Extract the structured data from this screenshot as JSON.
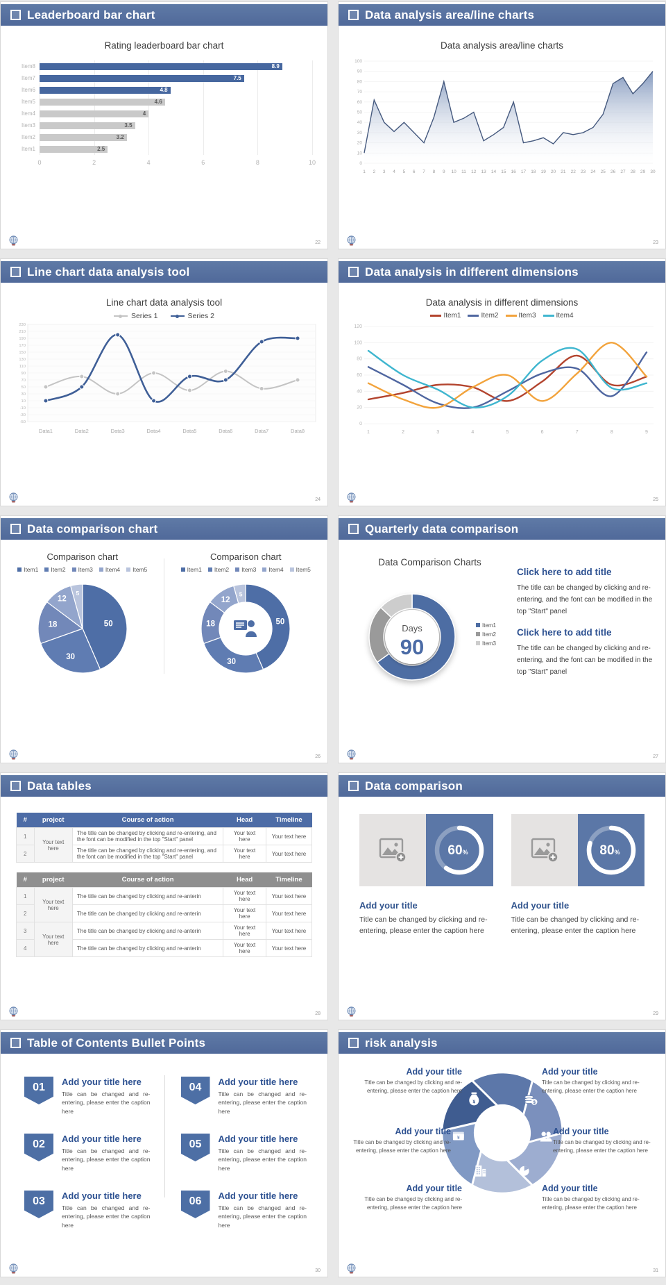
{
  "page": {
    "background": "#e8e8e8",
    "accent": "#50699a"
  },
  "slides": {
    "s1": {
      "header": "Leaderboard bar chart",
      "page_number": "22"
    },
    "s2": {
      "header": "Data analysis area/line charts",
      "page_number": "23"
    },
    "s3": {
      "header": "Line chart data analysis tool",
      "page_number": "24"
    },
    "s4": {
      "header": "Data analysis in different dimensions",
      "page_number": "25"
    },
    "s5": {
      "header": "Data comparison chart",
      "page_number": "26"
    },
    "s6": {
      "header": "Quarterly data comparison",
      "page_number": "27",
      "chart_title": "Data Comparison Charts",
      "blocks": [
        {
          "heading": "Click here to add title",
          "body": "The title can be changed by clicking and re-entering, and the font can be modified in the top \"Start\" panel"
        },
        {
          "heading": "Click here to add title",
          "body": "The title can be changed by clicking and re-entering, and the font can be modified in the top \"Start\" panel"
        }
      ]
    },
    "s7": {
      "header": "Data tables",
      "page_number": "28",
      "table1": {
        "style": "blue",
        "headers": [
          "#",
          "project",
          "Course of action",
          "Head",
          "Timeline"
        ],
        "project_merged": [
          "Your text here"
        ],
        "rows": [
          {
            "num": "1",
            "action": "The title can be changed by clicking and re-entering, and the font can be modified in the top \"Start\" panel",
            "head": "Your text here",
            "timeline": "Your text here"
          },
          {
            "num": "2",
            "action": "The title can be changed by clicking and re-entering, and the font can be modified in the top \"Start\" panel",
            "head": "Your text here",
            "timeline": "Your text here"
          }
        ]
      },
      "table2": {
        "style": "gray",
        "headers": [
          "#",
          "project",
          "Course of action",
          "Head",
          "Timeline"
        ],
        "project_merged": [
          "Your text here",
          "Your text here"
        ],
        "rows": [
          {
            "num": "1",
            "action": "The title can be changed by clicking and re-anterin",
            "head": "Your text here",
            "timeline": "Your text here"
          },
          {
            "num": "2",
            "action": "The title can be changed by clicking and re-anterin",
            "head": "Your text here",
            "timeline": "Your text here"
          },
          {
            "num": "3",
            "action": "The title can be changed by clicking and re-anterin",
            "head": "Your text here",
            "timeline": "Your text here"
          },
          {
            "num": "4",
            "action": "The title can be changed by clicking and re-anterin",
            "head": "Your text here",
            "timeline": "Your text here"
          }
        ]
      }
    },
    "s8": {
      "header": "Data comparison",
      "page_number": "29",
      "cards": [
        {
          "percent": 60,
          "percent_label": "60",
          "percent_suffix": "%",
          "title": "Add your title",
          "caption": "Title can be changed by clicking and re-entering, please enter the caption here"
        },
        {
          "percent": 80,
          "percent_label": "80",
          "percent_suffix": "%",
          "title": "Add your title",
          "caption": "Title can be changed by clicking and re-entering, please enter the caption here"
        }
      ]
    },
    "s9": {
      "header": "Table of Contents Bullet Points",
      "page_number": "30",
      "items": [
        {
          "number": "01",
          "title": "Add your title here",
          "caption": "Title can be changed and re-entering, please enter the caption here"
        },
        {
          "number": "02",
          "title": "Add your title here",
          "caption": "Title can be changed and re-entering, please enter the caption here"
        },
        {
          "number": "03",
          "title": "Add your title here",
          "caption": "Title can be changed and re-entering, please enter the caption here"
        },
        {
          "number": "04",
          "title": "Add your title here",
          "caption": "Title can be changed and re-entering, please enter the caption here"
        },
        {
          "number": "05",
          "title": "Add your title here",
          "caption": "Title can be changed and re-entering, please enter the caption here"
        },
        {
          "number": "06",
          "title": "Add your title here",
          "caption": "Title can be changed and re-entering, please enter the caption here"
        }
      ]
    },
    "s10": {
      "header": "risk analysis",
      "page_number": "31",
      "items": [
        {
          "icon": "moneybag-icon",
          "title": "Add your title",
          "caption": "Title can be changed by clicking and re-entering, please enter the caption here"
        },
        {
          "icon": "coins-icon",
          "title": "Add your title",
          "caption": "Title can be changed by clicking and re-entering, please enter the caption here"
        },
        {
          "icon": "people-icon",
          "title": "Add your title",
          "caption": "Title can be changed by clicking and re-entering, please enter the caption here"
        },
        {
          "icon": "pie-chart-icon",
          "title": "Add your title",
          "caption": "Title can be changed by clicking and re-entering, please enter the caption here"
        },
        {
          "icon": "building-icon",
          "title": "Add your title",
          "caption": "Title can be changed by clicking and re-entering, please enter the caption here"
        },
        {
          "icon": "cash-icon",
          "title": "Add your title",
          "caption": "Title can be changed by clicking and re-entering, please enter the caption here"
        }
      ]
    }
  },
  "chart_data": [
    {
      "slide": "s1",
      "type": "bar",
      "orientation": "horizontal",
      "title": "Rating leaderboard bar chart",
      "categories": [
        "Item1",
        "Item2",
        "Item3",
        "Item4",
        "Item5",
        "Item6",
        "Item7",
        "Item8"
      ],
      "values": [
        2.5,
        3.2,
        3.5,
        4,
        4.6,
        4.8,
        7.5,
        8.9
      ],
      "bar_colors": [
        "#c9c9c9",
        "#c9c9c9",
        "#c9c9c9",
        "#c9c9c9",
        "#c9c9c9",
        "#46679f",
        "#46679f",
        "#46679f"
      ],
      "xticks": [
        0,
        2,
        4,
        6,
        8,
        10
      ],
      "xlim": [
        0,
        10
      ],
      "grid": true
    },
    {
      "slide": "s2",
      "type": "area",
      "title": "Data analysis area/line charts",
      "x": [
        1,
        2,
        3,
        4,
        5,
        6,
        7,
        8,
        9,
        10,
        11,
        12,
        13,
        14,
        15,
        16,
        17,
        18,
        19,
        20,
        21,
        22,
        23,
        24,
        25,
        26,
        27,
        28,
        29,
        30
      ],
      "values": [
        10,
        62,
        40,
        31,
        40,
        30,
        20,
        45,
        80,
        40,
        44,
        50,
        22,
        28,
        35,
        60,
        20,
        22,
        25,
        19,
        30,
        28,
        30,
        35,
        48,
        78,
        84,
        68,
        78,
        90
      ],
      "ylim": [
        0,
        100
      ],
      "ytick_step": 10,
      "line_color": "#45597e",
      "fill_color": "#8096bc",
      "grid": true
    },
    {
      "slide": "s3",
      "type": "line",
      "title": "Line chart data analysis tool",
      "categories": [
        "Data1",
        "Data2",
        "Data3",
        "Data4",
        "Data5",
        "Data6",
        "Data7",
        "Data8"
      ],
      "series": [
        {
          "name": "Series 1",
          "color": "#c4c4c4",
          "values": [
            50,
            80,
            30,
            90,
            40,
            95,
            45,
            70
          ]
        },
        {
          "name": "Series 2",
          "color": "#3f5f97",
          "values": [
            10,
            50,
            200,
            10,
            80,
            70,
            180,
            190
          ]
        }
      ],
      "ylim": [
        -50,
        230
      ],
      "ytick_step": 20,
      "smooth": true,
      "markers": true,
      "legend_position": "top"
    },
    {
      "slide": "s4",
      "type": "line",
      "title": "Data analysis in different dimensions",
      "x": [
        1,
        2,
        3,
        4,
        5,
        6,
        7,
        8,
        9
      ],
      "series": [
        {
          "name": "Item1",
          "color": "#b3442e",
          "values": [
            30,
            38,
            48,
            45,
            28,
            52,
            84,
            48,
            58
          ]
        },
        {
          "name": "Item2",
          "color": "#4f66a0",
          "values": [
            70,
            48,
            25,
            20,
            40,
            62,
            68,
            34,
            88
          ]
        },
        {
          "name": "Item3",
          "color": "#f2a33c",
          "values": [
            50,
            30,
            20,
            45,
            60,
            28,
            62,
            100,
            58
          ]
        },
        {
          "name": "Item4",
          "color": "#3fb6cf",
          "values": [
            90,
            60,
            42,
            20,
            34,
            78,
            92,
            44,
            50
          ]
        }
      ],
      "ylim": [
        0,
        120
      ],
      "ytick_step": 20,
      "smooth": true,
      "legend_position": "top"
    },
    {
      "slide": "s5",
      "type": "pie",
      "charts": [
        {
          "title": "Comparison chart",
          "variant": "pie"
        },
        {
          "title": "Comparison chart",
          "variant": "donut",
          "center_icon": "presenter-icon"
        }
      ],
      "legend": [
        "Item1",
        "Item2",
        "Item3",
        "Item4",
        "Item5"
      ],
      "values": [
        50,
        30,
        18,
        12,
        5
      ],
      "colors": [
        "#4e6ea6",
        "#5f7cb2",
        "#7288b9",
        "#93a5cc",
        "#b9c4dd"
      ]
    },
    {
      "slide": "s6",
      "type": "donut",
      "title": "Data Comparison Charts",
      "center_label": "Days",
      "center_value": "90",
      "legend": [
        "Item1",
        "Item2",
        "Item3"
      ],
      "values": [
        65,
        22,
        13
      ],
      "colors": [
        "#4d6da3",
        "#9a9a9a",
        "#cdcdcd"
      ]
    },
    {
      "slide": "s8",
      "type": "progress-rings",
      "values": [
        60,
        80
      ],
      "ring_color": "#ffffff",
      "panel_color": "#5b77a7"
    }
  ]
}
